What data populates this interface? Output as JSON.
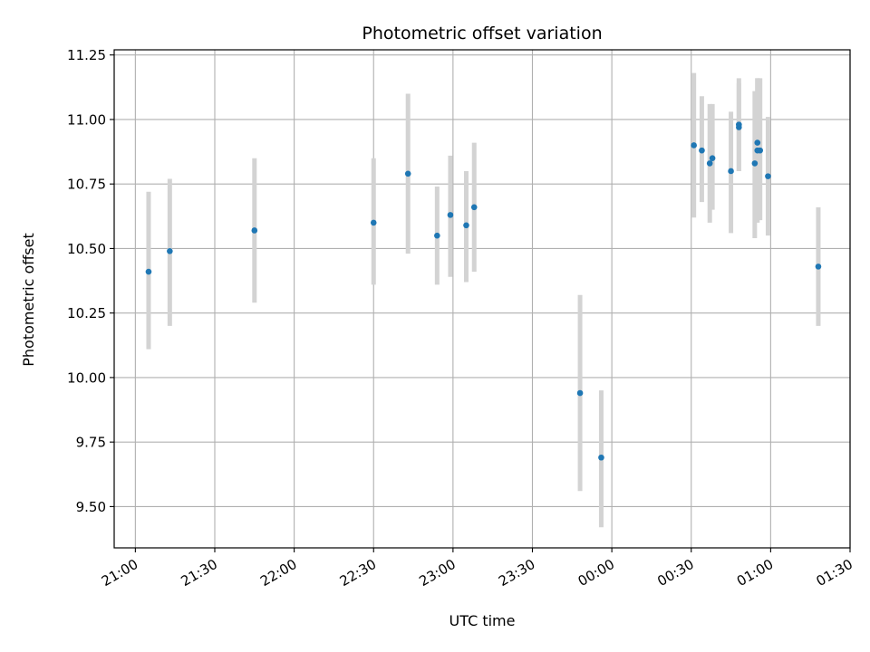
{
  "chart_data": {
    "type": "scatter",
    "title": "Photometric offset variation",
    "xlabel": "UTC time",
    "ylabel": "Photometric offset",
    "x_unit": "UTC time",
    "xlim": [
      "20:52",
      "01:30"
    ],
    "ylim": [
      9.34,
      11.27
    ],
    "x_ticks": [
      "21:00",
      "21:30",
      "22:00",
      "22:30",
      "23:00",
      "23:30",
      "00:00",
      "00:30",
      "01:00",
      "01:30"
    ],
    "y_ticks": [
      "9.50",
      "9.75",
      "10.00",
      "10.25",
      "10.50",
      "10.75",
      "11.00",
      "11.25"
    ],
    "grid": true,
    "point_color": "#1f77b4",
    "errorbar_color": "#d3d3d3",
    "points": [
      {
        "x": "21:05",
        "y": 10.41,
        "ylow": 10.11,
        "yhigh": 10.72
      },
      {
        "x": "21:13",
        "y": 10.49,
        "ylow": 10.2,
        "yhigh": 10.77
      },
      {
        "x": "21:45",
        "y": 10.57,
        "ylow": 10.29,
        "yhigh": 10.85
      },
      {
        "x": "22:30",
        "y": 10.6,
        "ylow": 10.36,
        "yhigh": 10.85
      },
      {
        "x": "22:43",
        "y": 10.79,
        "ylow": 10.48,
        "yhigh": 11.1
      },
      {
        "x": "22:54",
        "y": 10.55,
        "ylow": 10.36,
        "yhigh": 10.74
      },
      {
        "x": "22:59",
        "y": 10.63,
        "ylow": 10.39,
        "yhigh": 10.86
      },
      {
        "x": "23:05",
        "y": 10.59,
        "ylow": 10.37,
        "yhigh": 10.8
      },
      {
        "x": "23:08",
        "y": 10.66,
        "ylow": 10.41,
        "yhigh": 10.91
      },
      {
        "x": "23:48",
        "y": 9.94,
        "ylow": 9.56,
        "yhigh": 10.32
      },
      {
        "x": "23:56",
        "y": 9.69,
        "ylow": 9.42,
        "yhigh": 9.95
      },
      {
        "x": "00:31",
        "y": 10.9,
        "ylow": 10.62,
        "yhigh": 11.18
      },
      {
        "x": "00:34",
        "y": 10.88,
        "ylow": 10.68,
        "yhigh": 11.09
      },
      {
        "x": "00:37",
        "y": 10.83,
        "ylow": 10.6,
        "yhigh": 11.06
      },
      {
        "x": "00:38",
        "y": 10.85,
        "ylow": 10.65,
        "yhigh": 11.06
      },
      {
        "x": "00:45",
        "y": 10.8,
        "ylow": 10.56,
        "yhigh": 11.03
      },
      {
        "x": "00:48",
        "y": 10.97,
        "ylow": 10.8,
        "yhigh": 11.14
      },
      {
        "x": "00:48",
        "y": 10.98,
        "ylow": 10.8,
        "yhigh": 11.16
      },
      {
        "x": "00:54",
        "y": 10.83,
        "ylow": 10.54,
        "yhigh": 11.11
      },
      {
        "x": "00:55",
        "y": 10.88,
        "ylow": 10.6,
        "yhigh": 11.16
      },
      {
        "x": "00:55",
        "y": 10.91,
        "ylow": 10.65,
        "yhigh": 11.16
      },
      {
        "x": "00:56",
        "y": 10.88,
        "ylow": 10.61,
        "yhigh": 11.16
      },
      {
        "x": "00:59",
        "y": 10.78,
        "ylow": 10.55,
        "yhigh": 11.01
      },
      {
        "x": "01:18",
        "y": 10.43,
        "ylow": 10.2,
        "yhigh": 10.66
      }
    ]
  }
}
